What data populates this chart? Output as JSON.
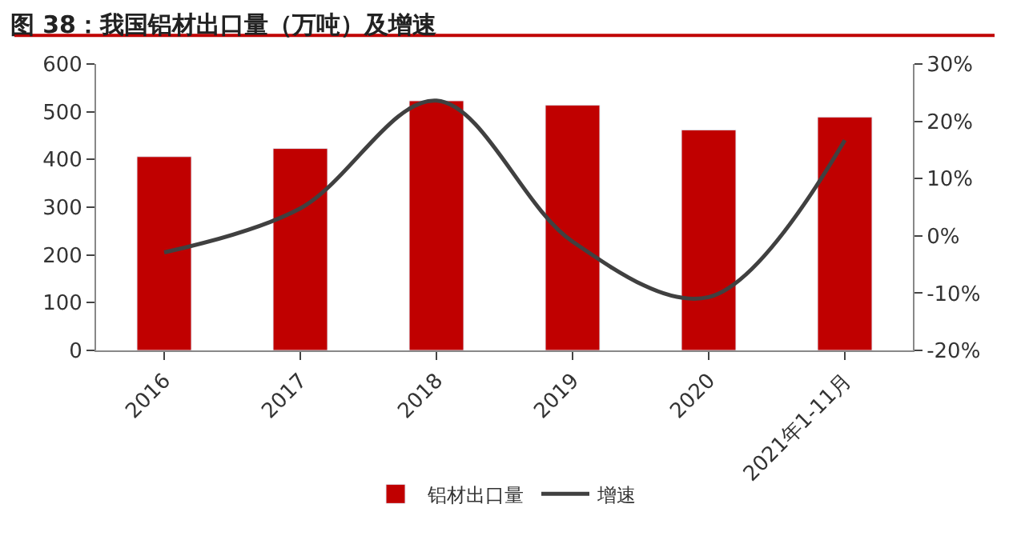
{
  "chart_data": {
    "type": "bar",
    "title": "图 38：我国铝材出口量（万吨）及增速",
    "categories": [
      "2016",
      "2017",
      "2018",
      "2019",
      "2020",
      "2021年1-11月"
    ],
    "series": [
      {
        "name": "铝材出口量",
        "color": "#c00000",
        "values": [
          406,
          423,
          523,
          514,
          462,
          489
        ]
      },
      {
        "name": "增速",
        "type": "line",
        "axis": "y2",
        "color": "#404040",
        "values": [
          -2.9,
          4.8,
          23.6,
          -1,
          -10.7,
          16.7
        ]
      }
    ],
    "ylim": [
      0,
      600
    ],
    "yticks": [
      0,
      100,
      200,
      300,
      400,
      500,
      600
    ],
    "y2lim": [
      -20,
      30
    ],
    "y2ticks": [
      {
        "value": -20,
        "label": "-20%"
      },
      {
        "value": -10,
        "label": "-10%"
      },
      {
        "value": 0,
        "label": "0%"
      },
      {
        "value": 10,
        "label": "10%"
      },
      {
        "value": 20,
        "label": "20%"
      },
      {
        "value": 30,
        "label": "30%"
      }
    ],
    "legend": "bottom",
    "marker": "none",
    "line_style": "solid"
  }
}
